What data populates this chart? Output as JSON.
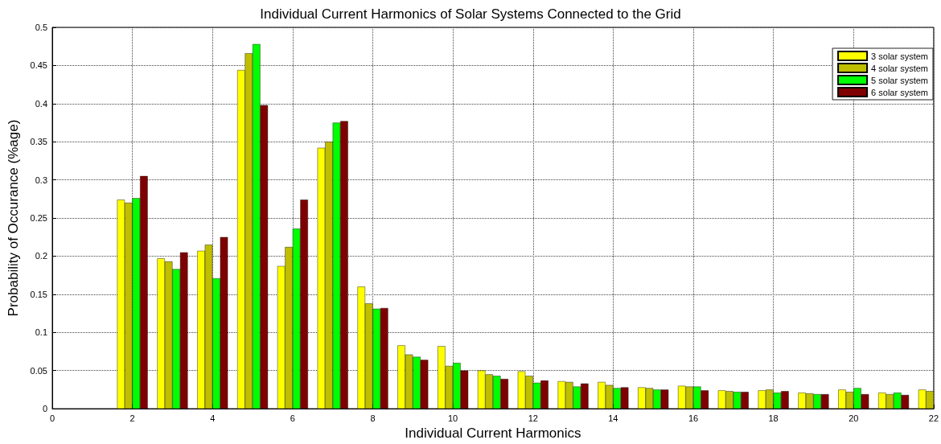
{
  "chart_data": {
    "type": "bar",
    "title": "Individual Current Harmonics of Solar Systems Connected to the Grid",
    "xlabel": "Individual Current Harmonics",
    "ylabel": "Probability of Occurance (%age)",
    "x": [
      2,
      3,
      4,
      5,
      6,
      7,
      8,
      9,
      10,
      11,
      12,
      13,
      14,
      15,
      16,
      17,
      18,
      19,
      20,
      21,
      22
    ],
    "series": [
      {
        "name": "3 solar system",
        "color": "#ffff00",
        "values": [
          0.274,
          0.197,
          0.207,
          0.444,
          0.187,
          0.342,
          0.16,
          0.083,
          0.082,
          0.05,
          0.049,
          0.036,
          0.035,
          0.028,
          0.03,
          0.024,
          0.024,
          0.021,
          0.025,
          0.021,
          0.025
        ]
      },
      {
        "name": "4 solar system",
        "color": "#bfbf00",
        "values": [
          0.27,
          0.193,
          0.215,
          0.466,
          0.212,
          0.35,
          0.138,
          0.071,
          0.056,
          0.045,
          0.043,
          0.035,
          0.031,
          0.027,
          0.029,
          0.023,
          0.025,
          0.02,
          0.022,
          0.019,
          0.023
        ]
      },
      {
        "name": "5 solar system",
        "color": "#00ff00",
        "values": [
          0.276,
          0.183,
          0.171,
          0.478,
          0.236,
          0.375,
          0.131,
          0.068,
          0.06,
          0.043,
          0.034,
          0.029,
          0.027,
          0.025,
          0.029,
          0.022,
          0.021,
          0.019,
          0.027,
          0.021,
          null
        ]
      },
      {
        "name": "6 solar system",
        "color": "#7f0000",
        "values": [
          0.305,
          0.205,
          0.225,
          0.398,
          0.274,
          0.377,
          0.132,
          0.064,
          0.05,
          0.039,
          0.037,
          0.033,
          0.028,
          0.025,
          0.024,
          0.022,
          0.023,
          0.019,
          0.019,
          0.018,
          null
        ]
      }
    ],
    "xlim": [
      0,
      22
    ],
    "xticks": [
      0,
      2,
      4,
      6,
      8,
      10,
      12,
      14,
      16,
      18,
      20,
      22
    ],
    "ylim": [
      0,
      0.5
    ],
    "yticks": [
      0,
      0.05,
      0.1,
      0.15,
      0.2,
      0.25,
      0.3,
      0.35,
      0.4,
      0.45,
      0.5
    ],
    "grid": true,
    "legend": "top right"
  }
}
